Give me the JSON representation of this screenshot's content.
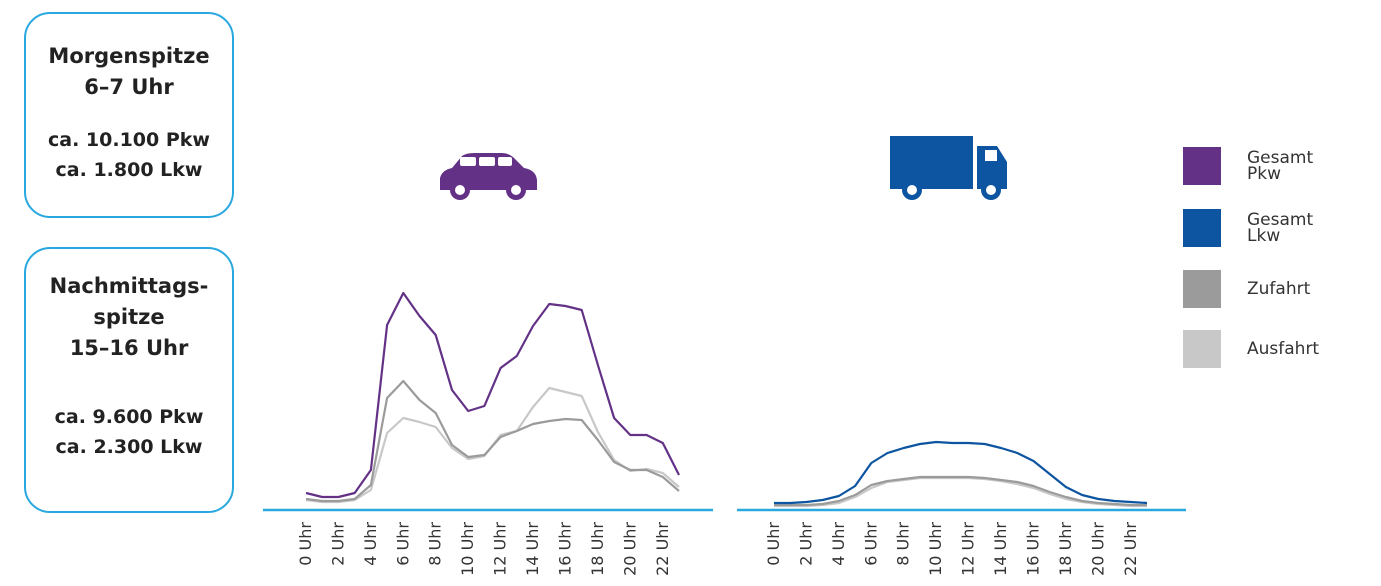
{
  "info_boxes": [
    {
      "lines": [
        "Morgenspitze",
        "6–7 Uhr"
      ],
      "details": [
        "ca. 10.100 Pkw",
        "ca. 1.800 Lkw"
      ]
    },
    {
      "lines": [
        "Nachmittags-",
        "spitze",
        "15–16 Uhr"
      ],
      "details": [
        "ca. 9.600 Pkw",
        "ca. 2.300 Lkw"
      ]
    }
  ],
  "legend": [
    {
      "name": "Gesamt Pkw",
      "color": "#633287"
    },
    {
      "name": "Gesamt Lkw",
      "color": "#0d55a0"
    },
    {
      "name": "Zufahrt",
      "color": "#9b9b9b"
    },
    {
      "name": "Ausfahrt",
      "color": "#c8c8c8"
    }
  ],
  "chart_data": [
    {
      "type": "line",
      "categories": [
        "0 Uhr",
        null,
        "2 Uhr",
        null,
        "4 Uhr",
        null,
        "6 Uhr",
        null,
        "8 Uhr",
        null,
        "10 Uhr",
        null,
        "12 Uhr",
        null,
        "14 Uhr",
        null,
        "16 Uhr",
        null,
        "18 Uhr",
        null,
        "20 Uhr",
        null,
        "22 Uhr",
        null
      ],
      "ylim": [
        0,
        240
      ],
      "series": [
        {
          "color": "#c8c8c8",
          "values": [
            10,
            8,
            8,
            10,
            20,
            77,
            92,
            88,
            83,
            62,
            51,
            54,
            75,
            79,
            103,
            122,
            118,
            114,
            78,
            50,
            39,
            41,
            37,
            23
          ]
        },
        {
          "color": "#9b9b9b",
          "values": [
            11,
            9,
            9,
            11,
            25,
            112,
            129,
            110,
            97,
            65,
            53,
            55,
            73,
            79,
            86,
            89,
            91,
            90,
            70,
            48,
            40,
            40,
            33,
            19
          ]
        },
        {
          "color": "#633287",
          "values": [
            17,
            13,
            13,
            17,
            40,
            185,
            217,
            194,
            175,
            120,
            99,
            104,
            142,
            154,
            184,
            206,
            204,
            200,
            145,
            92,
            75,
            75,
            67,
            35
          ]
        }
      ]
    },
    {
      "type": "line",
      "categories": [
        "0 Uhr",
        null,
        "2 Uhr",
        null,
        "4 Uhr",
        null,
        "6 Uhr",
        null,
        "8 Uhr",
        null,
        "10 Uhr",
        null,
        "12 Uhr",
        null,
        "14 Uhr",
        null,
        "16 Uhr",
        null,
        "18 Uhr",
        null,
        "20 Uhr",
        null,
        "22 Uhr",
        null
      ],
      "ylim": [
        0,
        240
      ],
      "series": [
        {
          "color": "#c8c8c8",
          "values": [
            4,
            4,
            4,
            5,
            7,
            13,
            22,
            28,
            30,
            32,
            32,
            32,
            32,
            31,
            29,
            26,
            22,
            16,
            11,
            8,
            6,
            5,
            4,
            4
          ]
        },
        {
          "color": "#9b9b9b",
          "values": [
            5,
            5,
            5,
            6,
            9,
            15,
            25,
            29,
            31,
            33,
            33,
            33,
            33,
            32,
            30,
            28,
            24,
            18,
            13,
            9,
            7,
            6,
            5,
            5
          ]
        },
        {
          "color": "#0d55a0",
          "values": [
            7,
            7,
            8,
            10,
            14,
            24,
            47,
            57,
            62,
            66,
            68,
            67,
            67,
            66,
            62,
            57,
            49,
            36,
            23,
            15,
            11,
            9,
            8,
            7
          ]
        }
      ]
    }
  ]
}
